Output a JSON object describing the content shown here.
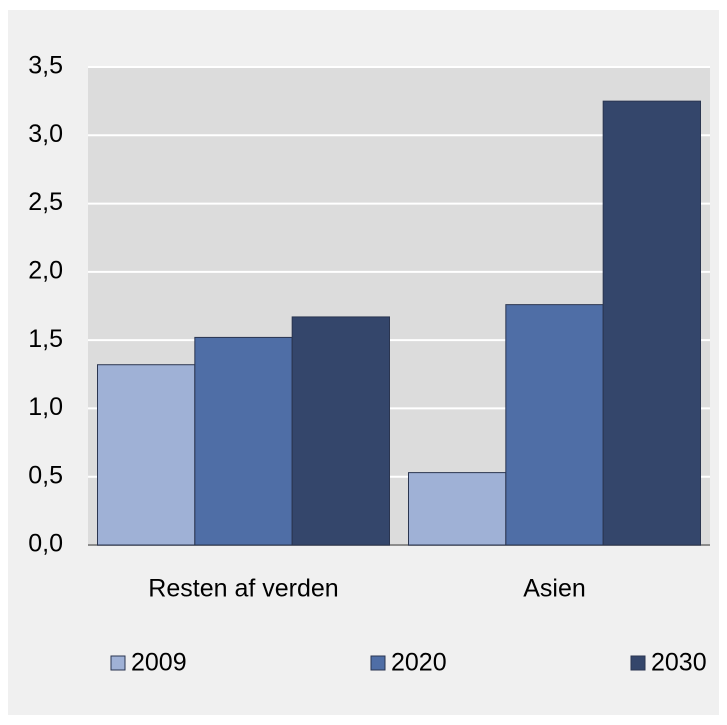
{
  "chart_data": {
    "type": "bar",
    "categories": [
      "Resten af verden",
      "Asien"
    ],
    "series": [
      {
        "name": "2009",
        "color": "#9fb1d6",
        "values": [
          1.32,
          0.53
        ]
      },
      {
        "name": "2020",
        "color": "#4f6ea6",
        "values": [
          1.52,
          1.76
        ]
      },
      {
        "name": "2030",
        "color": "#34466b",
        "values": [
          1.67,
          3.25
        ]
      }
    ],
    "ylim": [
      0,
      3.5
    ],
    "yticks": [
      {
        "value": 0,
        "label": "0,0"
      },
      {
        "value": 0.5,
        "label": "0,5"
      },
      {
        "value": 1,
        "label": "1,0"
      },
      {
        "value": 1.5,
        "label": "1,5"
      },
      {
        "value": 2,
        "label": "2,0"
      },
      {
        "value": 2.5,
        "label": "2,5"
      },
      {
        "value": 3,
        "label": "3,0"
      },
      {
        "value": 3.5,
        "label": "3,5"
      }
    ],
    "grid": true,
    "legend": "bottom"
  }
}
